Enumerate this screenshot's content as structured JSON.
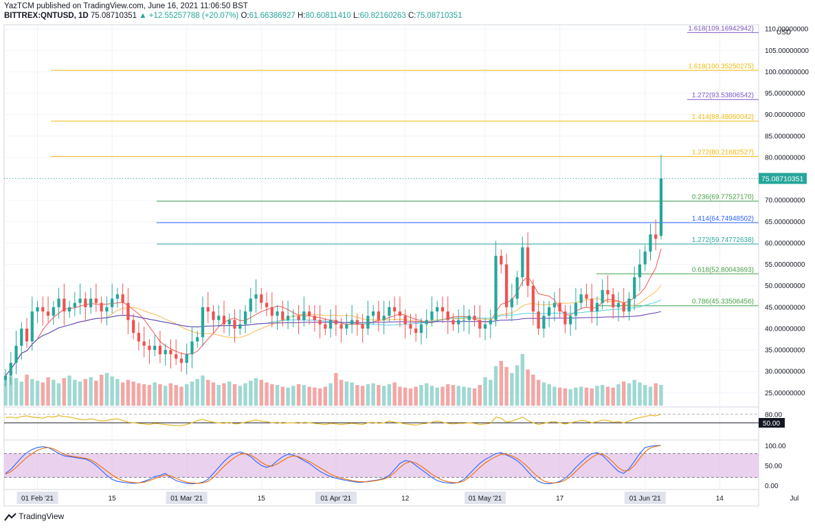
{
  "header": {
    "published": "YazTCM published on TradingView.com, June 16, 2021 11:06:50 BST",
    "symbol": "BITTREX:QNTUSD, 1D",
    "last": "75.08710351",
    "change": "▲ +12.55257788 (+20.07%)",
    "o_label": "O:",
    "o": "61.66386927",
    "h_label": "H:",
    "h": "80.60811410",
    "l_label": "L:",
    "l": "60.82160263",
    "c_label": "C:",
    "c": "75.08710351"
  },
  "currency": "USD",
  "last_price_badge": "75.08710351",
  "rsi_level_badge": "50.00",
  "footer": {
    "brand": "TradingView"
  },
  "colors": {
    "up": "#26a69a",
    "down": "#ef5350",
    "fib_orange": "#f0b90b",
    "fib_purple": "#7e57c2",
    "fib_blue": "#2962ff",
    "fib_green": "#43a047",
    "rsi": "#e6b422",
    "stoch_k": "#2962ff",
    "stoch_d": "#ef6c00",
    "stoch_band": "#e1bee7"
  },
  "chart_data": [
    {
      "type": "candlestick",
      "title": "BITTREX:QNTUSD, 1D",
      "ylim": [
        22,
        111
      ],
      "y_ticks": [
        "25.00000000",
        "30.00000000",
        "35.00000000",
        "40.00000000",
        "45.00000000",
        "50.00000000",
        "55.00000000",
        "60.00000000",
        "65.00000000",
        "70.00000000",
        "75.00000000",
        "80.00000000",
        "85.00000000",
        "90.00000000",
        "95.00000000",
        "100.00000000",
        "105.00000000",
        "110.00000000"
      ],
      "x_ticks": [
        "01 Feb '21",
        "15",
        "01 Mar '21",
        "15",
        "01 Apr '21",
        "12",
        "01 May '21",
        "17",
        "01 Jun '21",
        "14",
        "Jul"
      ],
      "x_tick_highlight": [
        "01 Feb '21",
        "01 Mar '21",
        "01 Apr '21",
        "01 May '21",
        "01 Jun '21"
      ],
      "closes": [
        29,
        32,
        36,
        40,
        37,
        44,
        45,
        44,
        43,
        45,
        47,
        44,
        45,
        46,
        47,
        45,
        47,
        46,
        44,
        45,
        47,
        48,
        46,
        42,
        39,
        37,
        36,
        35,
        36,
        34,
        35,
        34,
        33,
        32,
        34,
        37,
        38,
        45,
        44,
        42,
        43,
        41,
        42,
        40,
        41,
        44,
        47,
        48,
        46,
        45,
        43,
        44,
        42,
        43,
        43,
        42,
        44,
        43,
        42,
        41,
        40,
        42,
        41,
        40,
        41,
        42,
        41,
        40,
        43,
        44,
        42,
        43,
        45,
        44,
        43,
        41,
        40,
        39,
        41,
        42,
        44,
        45,
        44,
        42,
        41,
        42,
        42,
        43,
        42,
        40,
        41,
        42,
        57,
        55,
        45,
        47,
        52,
        59,
        50,
        44,
        40,
        43,
        45,
        46,
        44,
        41,
        43,
        46,
        48,
        47,
        44,
        46,
        49,
        48,
        45,
        46,
        44,
        47,
        52,
        55,
        58,
        62,
        61,
        75.09
      ],
      "last_candle": {
        "open": 61.66386927,
        "high": 80.6081141,
        "low": 60.82160263,
        "close": 75.08710351
      },
      "fib_levels": [
        {
          "label": "1.618(109.16942942)",
          "value": 109.16942942,
          "color": "#7e57c2"
        },
        {
          "label": "1.618(100.35250275)",
          "value": 100.35250275,
          "color": "#f0b90b"
        },
        {
          "label": "1.272(93.53806542)",
          "value": 93.53806542,
          "color": "#7e57c2"
        },
        {
          "label": "1.414(88.48060042)",
          "value": 88.48060042,
          "color": "#f0b90b"
        },
        {
          "label": "1.272(80.21682527)",
          "value": 80.21682527,
          "color": "#f0b90b"
        },
        {
          "label": "0.236(69.77527170)",
          "value": 69.7752717,
          "color": "#43a047"
        },
        {
          "label": "1.414(64.74948502)",
          "value": 64.74948502,
          "color": "#2962ff"
        },
        {
          "label": "1.272(59.74772638)",
          "value": 59.74772638,
          "color": "#26a69a"
        },
        {
          "label": "0.618(52.80043693)",
          "value": 52.80043693,
          "color": "#43a047"
        },
        {
          "label": "0.786(45.33506456)",
          "value": 45.33506456,
          "color": "#43a047"
        }
      ],
      "volume": [
        30,
        34,
        32,
        28,
        36,
        31,
        29,
        27,
        33,
        30,
        26,
        32,
        35,
        30,
        28,
        31,
        33,
        29,
        36,
        38,
        34,
        31,
        27,
        30,
        28,
        26,
        25,
        24,
        27,
        25,
        23,
        26,
        24,
        22,
        25,
        28,
        31,
        35,
        30,
        27,
        24,
        26,
        28,
        25,
        23,
        26,
        29,
        32,
        30,
        27,
        25,
        24,
        22,
        21,
        23,
        25,
        24,
        22,
        21,
        20,
        22,
        26,
        38,
        30,
        28,
        27,
        24,
        23,
        25,
        26,
        24,
        23,
        25,
        27,
        22,
        21,
        20,
        22,
        24,
        26,
        23,
        21,
        22,
        25,
        24,
        23,
        22,
        21,
        20,
        24,
        33,
        30,
        46,
        52,
        45,
        38,
        47,
        60,
        42,
        36,
        30,
        27,
        25,
        22,
        21,
        20,
        19,
        21,
        22,
        21,
        20,
        23,
        24,
        22,
        21,
        25,
        28,
        26,
        30,
        27,
        24,
        22,
        26,
        24
      ]
    },
    {
      "type": "line",
      "title": "",
      "ylim": [
        0,
        100
      ],
      "y_ticks": [
        "80.00"
      ],
      "level": 50,
      "values": [
        68,
        70,
        66,
        72,
        74,
        70,
        68,
        66,
        72,
        70,
        75,
        72,
        70,
        66,
        62,
        60,
        64,
        60,
        56,
        58,
        62,
        64,
        58,
        52,
        50,
        48,
        46,
        44,
        48,
        46,
        44,
        42,
        40,
        40,
        44,
        50,
        58,
        62,
        56,
        52,
        50,
        48,
        52,
        46,
        48,
        52,
        56,
        60,
        56,
        54,
        50,
        52,
        48,
        50,
        50,
        48,
        52,
        50,
        48,
        46,
        44,
        48,
        46,
        44,
        46,
        48,
        46,
        44,
        50,
        52,
        48,
        50,
        56,
        52,
        50,
        46,
        44,
        42,
        46,
        48,
        52,
        56,
        52,
        48,
        46,
        48,
        48,
        50,
        48,
        44,
        46,
        48,
        70,
        66,
        52,
        56,
        62,
        70,
        58,
        50,
        44,
        48,
        52,
        54,
        50,
        46,
        50,
        54,
        58,
        56,
        50,
        54,
        60,
        58,
        52,
        54,
        50,
        56,
        64,
        68,
        72,
        76,
        74,
        80
      ]
    },
    {
      "type": "line",
      "title": "",
      "ylim": [
        0,
        100
      ],
      "y_ticks": [
        "100.00",
        "50.00",
        "0.00"
      ],
      "band": [
        20,
        80
      ],
      "series": [
        {
          "values": [
            30,
            40,
            55,
            70,
            82,
            90,
            95,
            97,
            95,
            88,
            80,
            74,
            72,
            70,
            68,
            66,
            60,
            50,
            38,
            25,
            15,
            10,
            8,
            6,
            5,
            6,
            10,
            15,
            22,
            25,
            30,
            20,
            12,
            8,
            5,
            4,
            5,
            8,
            15,
            30,
            45,
            60,
            72,
            80,
            84,
            80,
            72,
            60,
            50,
            45,
            50,
            62,
            72,
            78,
            76,
            70,
            62,
            55,
            45,
            35,
            28,
            22,
            18,
            15,
            12,
            10,
            8,
            8,
            10,
            12,
            14,
            18,
            25,
            40,
            55,
            62,
            60,
            50,
            40,
            30,
            20,
            12,
            8,
            6,
            5,
            8,
            15,
            28,
            42,
            55,
            65,
            72,
            80,
            82,
            76,
            70,
            62,
            50,
            35,
            20,
            10,
            5,
            4,
            6,
            10,
            18,
            30,
            45,
            58,
            70,
            80,
            82,
            75,
            62,
            48,
            35,
            30,
            42,
            60,
            80,
            95,
            98,
            100,
            100
          ]
        },
        {
          "values": [
            28,
            34,
            45,
            58,
            70,
            80,
            88,
            93,
            95,
            92,
            85,
            78,
            74,
            72,
            70,
            68,
            64,
            56,
            46,
            36,
            26,
            18,
            12,
            9,
            7,
            6,
            8,
            12,
            17,
            22,
            26,
            24,
            18,
            12,
            8,
            6,
            5,
            6,
            10,
            20,
            34,
            48,
            60,
            70,
            78,
            80,
            76,
            68,
            58,
            50,
            48,
            54,
            62,
            70,
            74,
            72,
            66,
            60,
            52,
            44,
            36,
            28,
            22,
            18,
            15,
            12,
            10,
            9,
            9,
            11,
            13,
            16,
            21,
            32,
            45,
            55,
            60,
            56,
            48,
            38,
            28,
            20,
            13,
            9,
            7,
            7,
            11,
            20,
            32,
            45,
            56,
            65,
            72,
            78,
            78,
            74,
            68,
            58,
            46,
            32,
            20,
            11,
            7,
            6,
            8,
            13,
            22,
            35,
            48,
            60,
            70,
            78,
            79,
            70,
            58,
            44,
            36,
            38,
            50,
            68,
            84,
            94,
            98,
            100
          ]
        }
      ]
    }
  ]
}
